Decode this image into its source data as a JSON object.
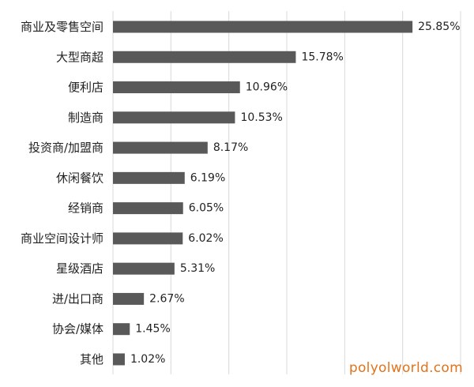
{
  "chart_data": {
    "type": "bar",
    "orientation": "horizontal",
    "categories": [
      "商业及零售空间",
      "大型商超",
      "便利店",
      "制造商",
      "投资商/加盟商",
      "休闲餐饮",
      "经销商",
      "商业空间设计师",
      "星级酒店",
      "进/出口商",
      "协会/媒体",
      "其他"
    ],
    "values": [
      25.85,
      15.78,
      10.96,
      10.53,
      8.17,
      6.19,
      6.05,
      6.02,
      5.31,
      2.67,
      1.45,
      1.02
    ],
    "value_labels": [
      "25.85%",
      "15.78%",
      "10.96%",
      "10.53%",
      "8.17%",
      "6.19%",
      "6.05%",
      "6.02%",
      "5.31%",
      "2.67%",
      "1.45%",
      "1.02%"
    ],
    "xlim": [
      0,
      30
    ],
    "grid": true,
    "bar_color": "#595959",
    "grid_color": "#d9d9d9",
    "title": "",
    "xlabel": "",
    "ylabel": ""
  },
  "watermark": {
    "text": "polyolworld.com",
    "color": "#e2731b"
  }
}
